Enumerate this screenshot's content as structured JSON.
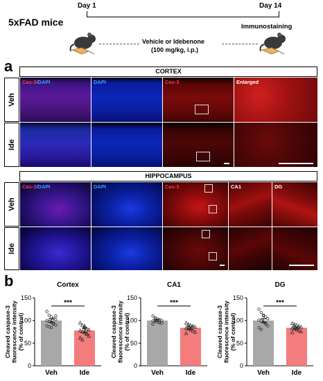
{
  "schema": {
    "model": "5xFAD mice",
    "day_start": "Day 1",
    "day_end": "Day 14",
    "treatment_line1": "Vehicle or Idebenone",
    "treatment_line2": "(100 mg/kg, i.p.)",
    "endpoint": "Immunostaining"
  },
  "panel_a": {
    "letter": "a",
    "cortex_header": "CORTEX",
    "hippocampus_header": "HIPPOCAMPUS",
    "cortex_columns": {
      "merge_red": "Cas-3",
      "merge_blue": "/DAPI",
      "dapi": "DAPI",
      "cas3": "Cas-3",
      "enlarged": "Enlarged"
    },
    "hippo_columns": {
      "merge_red": "Cas-3",
      "merge_blue": "/DAPI",
      "dapi": "DAPI",
      "cas3": "Cas-3",
      "ca1": "CA1",
      "dg": "DG"
    },
    "rows": [
      "Veh",
      "Ide"
    ]
  },
  "panel_b": {
    "letter": "b",
    "ylabel_line1": "Cleaved caspase-3",
    "ylabel_line2": "fluorescence intensity",
    "ylabel_line3": "(% of control)",
    "significance": "***",
    "colors": {
      "veh": "#a8a8a8",
      "ide": "#f47c7c"
    }
  },
  "chart_data": [
    {
      "type": "bar",
      "title": "Cortex",
      "categories": [
        "Veh",
        "Ide"
      ],
      "values": [
        100,
        78
      ],
      "errors": [
        4,
        5
      ],
      "ylim": [
        0,
        150
      ],
      "yticks": [
        0,
        50,
        100,
        150
      ],
      "ylabel": "Cleaved caspase-3 fluorescence intensity (% of control)",
      "points": [
        [
          120,
          112,
          108,
          104,
          102,
          100,
          98,
          96,
          94,
          90,
          88,
          86,
          84,
          92,
          110
        ],
        [
          95,
          90,
          85,
          82,
          80,
          78,
          76,
          74,
          70,
          66,
          62,
          58,
          88,
          72
        ]
      ],
      "annotation": "***"
    },
    {
      "type": "bar",
      "title": "CA1",
      "categories": [
        "Veh",
        "Ide"
      ],
      "values": [
        100,
        84
      ],
      "errors": [
        2,
        3
      ],
      "ylim": [
        0,
        150
      ],
      "yticks": [
        0,
        50,
        100,
        150
      ],
      "ylabel": "Cleaved caspase-3 fluorescence intensity (% of control)",
      "points": [
        [
          110,
          106,
          104,
          102,
          100,
          99,
          98,
          97,
          96,
          94,
          92,
          103,
          101,
          95
        ],
        [
          95,
          92,
          90,
          88,
          86,
          84,
          82,
          80,
          78,
          75,
          72,
          87,
          83
        ]
      ],
      "annotation": "***"
    },
    {
      "type": "bar",
      "title": "DG",
      "categories": [
        "Veh",
        "Ide"
      ],
      "values": [
        100,
        84
      ],
      "errors": [
        4,
        2
      ],
      "ylim": [
        0,
        150
      ],
      "yticks": [
        0,
        50,
        100,
        150
      ],
      "ylabel": "Cleaved caspase-3 fluorescence intensity (% of control)",
      "points": [
        [
          125,
          118,
          112,
          108,
          104,
          101,
          99,
          96,
          92,
          88,
          84,
          80,
          110,
          95
        ],
        [
          94,
          92,
          90,
          88,
          86,
          84,
          82,
          80,
          78,
          76,
          74,
          87,
          83
        ]
      ],
      "annotation": "***"
    }
  ]
}
